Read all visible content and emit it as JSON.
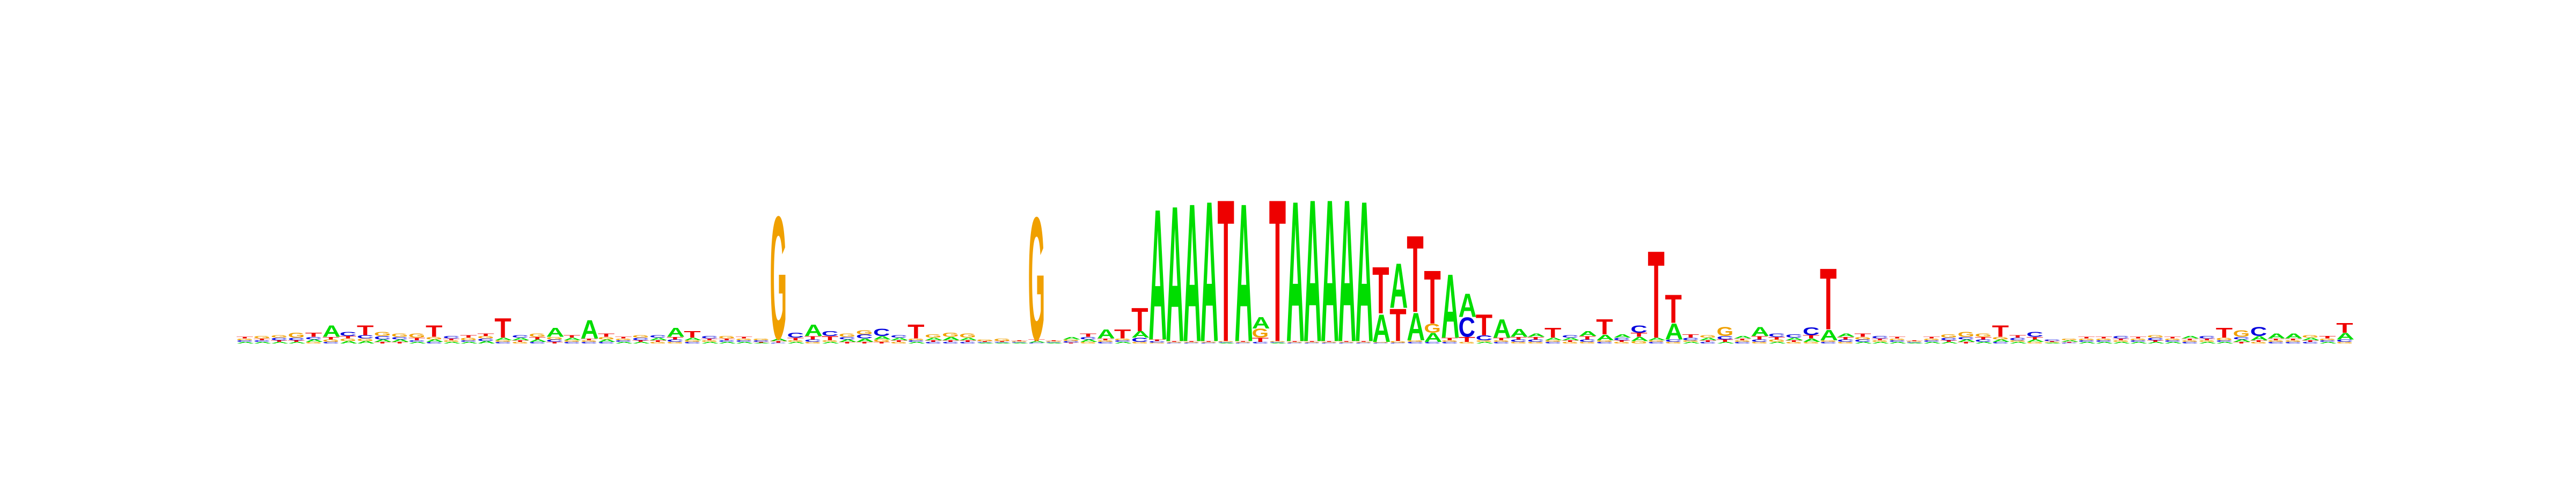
{
  "chart_data": {
    "type": "sequence_logo",
    "alphabet": [
      "A",
      "C",
      "G",
      "T"
    ],
    "colors": {
      "A": "#00dd00",
      "C": "#0000dd",
      "G": "#f0a000",
      "T": "#ee0000"
    },
    "ylim": [
      0,
      2
    ],
    "positions": [
      {
        "pos": 1,
        "letters": {
          "A": 0.02,
          "C": 0.02,
          "G": 0.02,
          "T": 0.02
        }
      },
      {
        "pos": 2,
        "letters": {
          "A": 0.02,
          "C": 0.02,
          "G": 0.03,
          "T": 0.02
        }
      },
      {
        "pos": 3,
        "letters": {
          "A": 0.02,
          "C": 0.03,
          "G": 0.03,
          "T": 0.02
        }
      },
      {
        "pos": 4,
        "letters": {
          "A": 0.02,
          "C": 0.03,
          "G": 0.06,
          "T": 0.02
        }
      },
      {
        "pos": 5,
        "letters": {
          "A": 0.03,
          "C": 0.03,
          "G": 0.02,
          "T": 0.05
        }
      },
      {
        "pos": 6,
        "letters": {
          "A": 0.14,
          "C": 0.02,
          "G": 0.03,
          "T": 0.03
        }
      },
      {
        "pos": 7,
        "letters": {
          "A": 0.03,
          "C": 0.05,
          "G": 0.03,
          "T": 0.03
        }
      },
      {
        "pos": 8,
        "letters": {
          "A": 0.03,
          "C": 0.04,
          "G": 0.03,
          "T": 0.12
        }
      },
      {
        "pos": 9,
        "letters": {
          "A": 0.03,
          "C": 0.04,
          "G": 0.05,
          "T": 0.02
        }
      },
      {
        "pos": 10,
        "letters": {
          "A": 0.03,
          "C": 0.03,
          "G": 0.04,
          "T": 0.02
        }
      },
      {
        "pos": 11,
        "letters": {
          "A": 0.02,
          "C": 0.02,
          "G": 0.05,
          "T": 0.03
        }
      },
      {
        "pos": 12,
        "letters": {
          "A": 0.03,
          "C": 0.02,
          "G": 0.03,
          "T": 0.14
        }
      },
      {
        "pos": 13,
        "letters": {
          "A": 0.02,
          "C": 0.03,
          "G": 0.02,
          "T": 0.02
        }
      },
      {
        "pos": 14,
        "letters": {
          "A": 0.02,
          "C": 0.02,
          "G": 0.03,
          "T": 0.03
        }
      },
      {
        "pos": 15,
        "letters": {
          "A": 0.03,
          "C": 0.03,
          "G": 0.03,
          "T": 0.03
        }
      },
      {
        "pos": 16,
        "letters": {
          "A": 0.03,
          "C": 0.02,
          "G": 0.02,
          "T": 0.24
        }
      },
      {
        "pos": 17,
        "letters": {
          "A": 0.03,
          "C": 0.03,
          "G": 0.02,
          "T": 0.02
        }
      },
      {
        "pos": 18,
        "letters": {
          "A": 0.03,
          "C": 0.02,
          "G": 0.04,
          "T": 0.03
        }
      },
      {
        "pos": 19,
        "letters": {
          "A": 0.11,
          "C": 0.03,
          "G": 0.03,
          "T": 0.02
        }
      },
      {
        "pos": 20,
        "letters": {
          "A": 0.03,
          "C": 0.02,
          "G": 0.02,
          "T": 0.03
        }
      },
      {
        "pos": 21,
        "letters": {
          "A": 0.23,
          "C": 0.02,
          "G": 0.02,
          "T": 0.02
        }
      },
      {
        "pos": 22,
        "letters": {
          "A": 0.03,
          "C": 0.02,
          "G": 0.03,
          "T": 0.04
        }
      },
      {
        "pos": 23,
        "letters": {
          "A": 0.02,
          "C": 0.02,
          "G": 0.02,
          "T": 0.02
        }
      },
      {
        "pos": 24,
        "letters": {
          "A": 0.02,
          "C": 0.03,
          "G": 0.03,
          "T": 0.02
        }
      },
      {
        "pos": 25,
        "letters": {
          "A": 0.03,
          "C": 0.03,
          "G": 0.02,
          "T": 0.02
        }
      },
      {
        "pos": 26,
        "letters": {
          "A": 0.11,
          "C": 0.03,
          "G": 0.02,
          "T": 0.03
        }
      },
      {
        "pos": 27,
        "letters": {
          "A": 0.03,
          "C": 0.02,
          "G": 0.02,
          "T": 0.08
        }
      },
      {
        "pos": 28,
        "letters": {
          "A": 0.02,
          "C": 0.03,
          "G": 0.02,
          "T": 0.02
        }
      },
      {
        "pos": 29,
        "letters": {
          "A": 0.02,
          "C": 0.02,
          "G": 0.03,
          "T": 0.02
        }
      },
      {
        "pos": 30,
        "letters": {
          "A": 0.02,
          "C": 0.02,
          "G": 0.02,
          "T": 0.02
        }
      },
      {
        "pos": 31,
        "letters": {
          "A": 0.01,
          "C": 0.02,
          "G": 0.02,
          "T": 0.01
        }
      },
      {
        "pos": 32,
        "letters": {
          "A": 0.03,
          "C": 0.01,
          "G": 1.52,
          "T": 0.02
        }
      },
      {
        "pos": 33,
        "letters": {
          "A": 0.02,
          "C": 0.06,
          "G": 0.02,
          "T": 0.03
        }
      },
      {
        "pos": 34,
        "letters": {
          "A": 0.14,
          "C": 0.03,
          "G": 0.02,
          "T": 0.04
        }
      },
      {
        "pos": 35,
        "letters": {
          "A": 0.02,
          "C": 0.06,
          "G": 0.02,
          "T": 0.05
        }
      },
      {
        "pos": 36,
        "letters": {
          "A": 0.03,
          "C": 0.03,
          "G": 0.04,
          "T": 0.02
        }
      },
      {
        "pos": 37,
        "letters": {
          "A": 0.04,
          "C": 0.05,
          "G": 0.05,
          "T": 0.02
        }
      },
      {
        "pos": 38,
        "letters": {
          "A": 0.04,
          "C": 0.09,
          "G": 0.03,
          "T": 0.02
        }
      },
      {
        "pos": 39,
        "letters": {
          "A": 0.03,
          "C": 0.03,
          "G": 0.02,
          "T": 0.02
        }
      },
      {
        "pos": 40,
        "letters": {
          "A": 0.02,
          "C": 0.02,
          "G": 0.02,
          "T": 0.17
        }
      },
      {
        "pos": 41,
        "letters": {
          "A": 0.03,
          "C": 0.02,
          "G": 0.04,
          "T": 0.02
        }
      },
      {
        "pos": 42,
        "letters": {
          "A": 0.04,
          "C": 0.02,
          "G": 0.05,
          "T": 0.02
        }
      },
      {
        "pos": 43,
        "letters": {
          "A": 0.03,
          "C": 0.02,
          "G": 0.05,
          "T": 0.02
        }
      },
      {
        "pos": 44,
        "letters": {
          "A": 0.01,
          "C": 0.01,
          "G": 0.02,
          "T": 0.01
        }
      },
      {
        "pos": 45,
        "letters": {
          "A": 0.01,
          "C": 0.01,
          "G": 0.03,
          "T": 0.01
        }
      },
      {
        "pos": 46,
        "letters": {
          "A": 0.01,
          "C": 0.01,
          "G": 0.01,
          "T": 0.01
        }
      },
      {
        "pos": 47,
        "letters": {
          "A": 0.02,
          "C": 0.01,
          "G": 1.52,
          "T": 0.02
        }
      },
      {
        "pos": 48,
        "letters": {
          "A": 0.01,
          "C": 0.01,
          "G": 0.01,
          "T": 0.01
        }
      },
      {
        "pos": 49,
        "letters": {
          "A": 0.03,
          "C": 0.02,
          "G": 0.02,
          "T": 0.01
        }
      },
      {
        "pos": 50,
        "letters": {
          "A": 0.03,
          "C": 0.03,
          "G": 0.02,
          "T": 0.04
        }
      },
      {
        "pos": 51,
        "letters": {
          "A": 0.11,
          "C": 0.02,
          "G": 0.02,
          "T": 0.02
        }
      },
      {
        "pos": 52,
        "letters": {
          "A": 0.02,
          "C": 0.02,
          "G": 0.02,
          "T": 0.11
        }
      },
      {
        "pos": 53,
        "letters": {
          "A": 0.08,
          "C": 0.05,
          "G": 0.02,
          "T": 0.29
        }
      },
      {
        "pos": 54,
        "letters": {
          "A": 1.62,
          "C": 0.02,
          "G": 0.01,
          "T": 0.02
        }
      },
      {
        "pos": 55,
        "letters": {
          "A": 1.68,
          "C": 0.01,
          "G": 0.01,
          "T": 0.01
        }
      },
      {
        "pos": 56,
        "letters": {
          "A": 1.71,
          "C": 0.01,
          "G": 0.01,
          "T": 0.01
        }
      },
      {
        "pos": 57,
        "letters": {
          "A": 1.74,
          "C": 0.01,
          "G": 0.01,
          "T": 0.01
        }
      },
      {
        "pos": 58,
        "letters": {
          "A": 0.01,
          "C": 0.01,
          "G": 0.01,
          "T": 1.76
        }
      },
      {
        "pos": 59,
        "letters": {
          "A": 1.71,
          "C": 0.01,
          "G": 0.01,
          "T": 0.01
        }
      },
      {
        "pos": 60,
        "letters": {
          "A": 0.14,
          "C": 0.02,
          "G": 0.11,
          "T": 0.05
        }
      },
      {
        "pos": 61,
        "letters": {
          "A": 0.01,
          "C": 0.01,
          "G": 0.01,
          "T": 1.76
        }
      },
      {
        "pos": 62,
        "letters": {
          "A": 1.74,
          "C": 0.01,
          "G": 0.01,
          "T": 0.01
        }
      },
      {
        "pos": 63,
        "letters": {
          "A": 1.76,
          "C": 0.01,
          "G": 0.01,
          "T": 0.01
        }
      },
      {
        "pos": 64,
        "letters": {
          "A": 1.76,
          "C": 0.01,
          "G": 0.01,
          "T": 0.01
        }
      },
      {
        "pos": 65,
        "letters": {
          "A": 1.76,
          "C": 0.01,
          "G": 0.01,
          "T": 0.01
        }
      },
      {
        "pos": 66,
        "letters": {
          "A": 1.74,
          "C": 0.01,
          "G": 0.01,
          "T": 0.01
        }
      },
      {
        "pos": 67,
        "letters": {
          "A": 0.34,
          "C": 0.01,
          "G": 0.01,
          "T": 0.58
        }
      },
      {
        "pos": 68,
        "letters": {
          "A": 0.55,
          "C": 0.01,
          "G": 0.02,
          "T": 0.4
        }
      },
      {
        "pos": 69,
        "letters": {
          "A": 0.34,
          "C": 0.02,
          "G": 0.02,
          "T": 0.95
        }
      },
      {
        "pos": 70,
        "letters": {
          "A": 0.11,
          "C": 0.02,
          "G": 0.11,
          "T": 0.66
        }
      },
      {
        "pos": 71,
        "letters": {
          "A": 0.79,
          "C": 0.02,
          "G": 0.02,
          "T": 0.03
        }
      },
      {
        "pos": 72,
        "letters": {
          "A": 0.29,
          "C": 0.24,
          "G": 0.02,
          "T": 0.06
        }
      },
      {
        "pos": 73,
        "letters": {
          "A": 0.02,
          "C": 0.06,
          "G": 0.02,
          "T": 0.26
        }
      },
      {
        "pos": 74,
        "letters": {
          "A": 0.23,
          "C": 0.02,
          "G": 0.02,
          "T": 0.03
        }
      },
      {
        "pos": 75,
        "letters": {
          "A": 0.1,
          "C": 0.03,
          "G": 0.02,
          "T": 0.03
        }
      },
      {
        "pos": 76,
        "letters": {
          "A": 0.04,
          "C": 0.03,
          "G": 0.02,
          "T": 0.03
        }
      },
      {
        "pos": 77,
        "letters": {
          "A": 0.03,
          "C": 0.02,
          "G": 0.02,
          "T": 0.12
        }
      },
      {
        "pos": 78,
        "letters": {
          "A": 0.03,
          "C": 0.03,
          "G": 0.02,
          "T": 0.02
        }
      },
      {
        "pos": 79,
        "letters": {
          "A": 0.06,
          "C": 0.03,
          "G": 0.02,
          "T": 0.04
        }
      },
      {
        "pos": 80,
        "letters": {
          "A": 0.07,
          "C": 0.02,
          "G": 0.02,
          "T": 0.19
        }
      },
      {
        "pos": 81,
        "letters": {
          "A": 0.04,
          "C": 0.03,
          "G": 0.02,
          "T": 0.02
        }
      },
      {
        "pos": 82,
        "letters": {
          "A": 0.05,
          "C": 0.09,
          "G": 0.03,
          "T": 0.05
        }
      },
      {
        "pos": 83,
        "letters": {
          "A": 0.03,
          "C": 0.02,
          "G": 0.02,
          "T": 1.08
        }
      },
      {
        "pos": 84,
        "letters": {
          "A": 0.2,
          "C": 0.03,
          "G": 0.02,
          "T": 0.35
        }
      },
      {
        "pos": 85,
        "letters": {
          "A": 0.02,
          "C": 0.03,
          "G": 0.02,
          "T": 0.04
        }
      },
      {
        "pos": 86,
        "letters": {
          "A": 0.03,
          "C": 0.02,
          "G": 0.03,
          "T": 0.02
        }
      },
      {
        "pos": 87,
        "letters": {
          "A": 0.02,
          "C": 0.04,
          "G": 0.11,
          "T": 0.03
        }
      },
      {
        "pos": 88,
        "letters": {
          "A": 0.03,
          "C": 0.02,
          "G": 0.02,
          "T": 0.02
        }
      },
      {
        "pos": 89,
        "letters": {
          "A": 0.11,
          "C": 0.03,
          "G": 0.02,
          "T": 0.04
        }
      },
      {
        "pos": 90,
        "letters": {
          "A": 0.02,
          "C": 0.04,
          "G": 0.03,
          "T": 0.03
        }
      },
      {
        "pos": 91,
        "letters": {
          "A": 0.03,
          "C": 0.04,
          "G": 0.02,
          "T": 0.02
        }
      },
      {
        "pos": 92,
        "letters": {
          "A": 0.04,
          "C": 0.1,
          "G": 0.02,
          "T": 0.04
        }
      },
      {
        "pos": 93,
        "letters": {
          "A": 0.13,
          "C": 0.02,
          "G": 0.02,
          "T": 0.76
        }
      },
      {
        "pos": 94,
        "letters": {
          "A": 0.04,
          "C": 0.03,
          "G": 0.02,
          "T": 0.03
        }
      },
      {
        "pos": 95,
        "letters": {
          "A": 0.02,
          "C": 0.03,
          "G": 0.03,
          "T": 0.04
        }
      },
      {
        "pos": 96,
        "letters": {
          "A": 0.02,
          "C": 0.03,
          "G": 0.02,
          "T": 0.02
        }
      },
      {
        "pos": 97,
        "letters": {
          "A": 0.02,
          "C": 0.02,
          "G": 0.02,
          "T": 0.02
        }
      },
      {
        "pos": 98,
        "letters": {
          "A": 0.01,
          "C": 0.01,
          "G": 0.01,
          "T": 0.01
        }
      },
      {
        "pos": 99,
        "letters": {
          "A": 0.02,
          "C": 0.02,
          "G": 0.02,
          "T": 0.02
        }
      },
      {
        "pos": 100,
        "letters": {
          "A": 0.02,
          "C": 0.03,
          "G": 0.04,
          "T": 0.02
        }
      },
      {
        "pos": 101,
        "letters": {
          "A": 0.03,
          "C": 0.03,
          "G": 0.06,
          "T": 0.02
        }
      },
      {
        "pos": 102,
        "letters": {
          "A": 0.02,
          "C": 0.03,
          "G": 0.04,
          "T": 0.03
        }
      },
      {
        "pos": 103,
        "letters": {
          "A": 0.03,
          "C": 0.02,
          "G": 0.03,
          "T": 0.14
        }
      },
      {
        "pos": 104,
        "letters": {
          "A": 0.02,
          "C": 0.03,
          "G": 0.02,
          "T": 0.03
        }
      },
      {
        "pos": 105,
        "letters": {
          "A": 0.03,
          "C": 0.06,
          "G": 0.02,
          "T": 0.03
        }
      },
      {
        "pos": 106,
        "letters": {
          "A": 0.01,
          "C": 0.02,
          "G": 0.01,
          "T": 0.01
        }
      },
      {
        "pos": 107,
        "letters": {
          "A": 0.02,
          "C": 0.01,
          "G": 0.02,
          "T": 0.01
        }
      },
      {
        "pos": 108,
        "letters": {
          "A": 0.02,
          "C": 0.02,
          "G": 0.02,
          "T": 0.02
        }
      },
      {
        "pos": 109,
        "letters": {
          "A": 0.02,
          "C": 0.02,
          "G": 0.02,
          "T": 0.02
        }
      },
      {
        "pos": 110,
        "letters": {
          "A": 0.02,
          "C": 0.03,
          "G": 0.02,
          "T": 0.02
        }
      },
      {
        "pos": 111,
        "letters": {
          "A": 0.02,
          "C": 0.02,
          "G": 0.02,
          "T": 0.02
        }
      },
      {
        "pos": 112,
        "letters": {
          "A": 0.02,
          "C": 0.03,
          "G": 0.03,
          "T": 0.02
        }
      },
      {
        "pos": 113,
        "letters": {
          "A": 0.02,
          "C": 0.02,
          "G": 0.02,
          "T": 0.02
        }
      },
      {
        "pos": 114,
        "letters": {
          "A": 0.03,
          "C": 0.02,
          "G": 0.02,
          "T": 0.02
        }
      },
      {
        "pos": 115,
        "letters": {
          "A": 0.02,
          "C": 0.03,
          "G": 0.02,
          "T": 0.02
        }
      },
      {
        "pos": 116,
        "letters": {
          "A": 0.02,
          "C": 0.02,
          "G": 0.03,
          "T": 0.12
        }
      },
      {
        "pos": 117,
        "letters": {
          "A": 0.03,
          "C": 0.03,
          "G": 0.08,
          "T": 0.02
        }
      },
      {
        "pos": 118,
        "letters": {
          "A": 0.05,
          "C": 0.11,
          "G": 0.02,
          "T": 0.02
        }
      },
      {
        "pos": 119,
        "letters": {
          "A": 0.06,
          "C": 0.02,
          "G": 0.02,
          "T": 0.02
        }
      },
      {
        "pos": 120,
        "letters": {
          "A": 0.06,
          "C": 0.02,
          "G": 0.02,
          "T": 0.02
        }
      },
      {
        "pos": 121,
        "letters": {
          "A": 0.03,
          "C": 0.02,
          "G": 0.03,
          "T": 0.02
        }
      },
      {
        "pos": 122,
        "letters": {
          "A": 0.02,
          "C": 0.02,
          "G": 0.02,
          "T": 0.03
        }
      },
      {
        "pos": 123,
        "letters": {
          "A": 0.08,
          "C": 0.03,
          "G": 0.02,
          "T": 0.12
        }
      }
    ]
  }
}
